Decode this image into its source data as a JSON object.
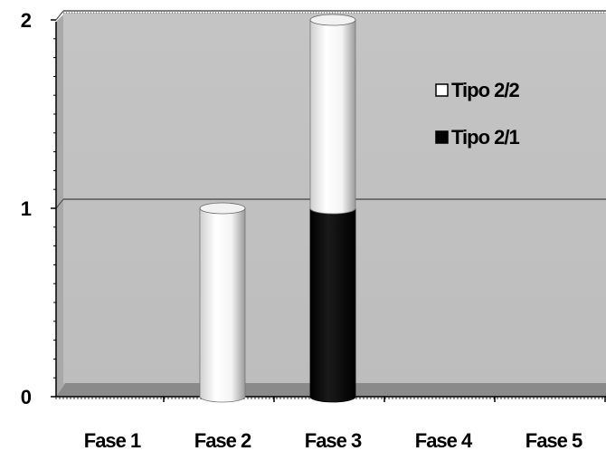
{
  "chart_data": {
    "type": "bar",
    "stacked": true,
    "style": "3d-cylinder",
    "categories": [
      "Fase 1",
      "Fase 2",
      "Fase 3",
      "Fase 4",
      "Fase 5"
    ],
    "series": [
      {
        "name": "Tipo 2/1",
        "values": [
          0,
          0,
          1,
          0,
          0
        ],
        "color": "#000000"
      },
      {
        "name": "Tipo 2/2",
        "values": [
          0,
          1,
          1,
          0,
          0
        ],
        "color": "#ffffff"
      }
    ],
    "ylim": [
      0,
      2
    ],
    "yticks": [
      "0",
      "1",
      "2"
    ],
    "grid": true,
    "legend_position": "top-right",
    "plot_background": "#c0c0c0",
    "floor_color": "#808080"
  }
}
